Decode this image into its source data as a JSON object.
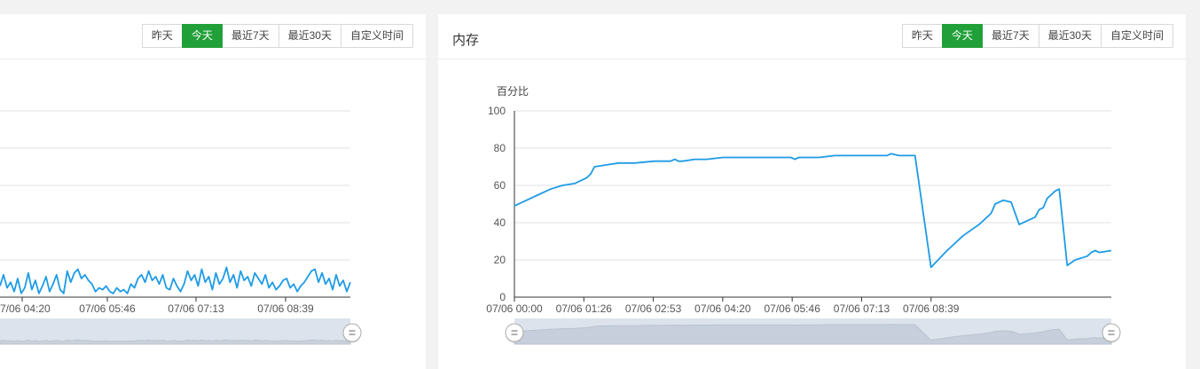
{
  "panels": [
    {
      "title": "",
      "buttons": [
        "昨天",
        "今天",
        "最近7天",
        "最近30天",
        "自定义时间"
      ],
      "active_button": "今天"
    },
    {
      "title": "内存",
      "buttons": [
        "昨天",
        "今天",
        "最近7天",
        "最近30天",
        "自定义时间"
      ],
      "active_button": "今天"
    }
  ],
  "chart_data": [
    {
      "type": "line",
      "title": "",
      "xlabel": "",
      "ylabel": "",
      "x_tick_labels": [
        "07/06 04:20",
        "07/06 05:46",
        "07/06 07:13",
        "07/06 08:39"
      ],
      "ylim": [
        0,
        100
      ],
      "grid": true,
      "range_slider": true,
      "line_color": "#1e9be6",
      "series": [
        {
          "values": [
            6,
            12,
            5,
            8,
            3,
            10,
            2,
            5,
            13,
            4,
            9,
            2,
            6,
            11,
            3,
            7,
            12,
            4,
            2,
            14,
            8,
            13,
            15,
            10,
            12,
            9,
            7,
            3,
            5,
            4,
            6,
            3,
            2,
            5,
            3,
            4,
            2,
            7,
            5,
            10,
            12,
            8,
            14,
            9,
            11,
            7,
            12,
            5,
            4,
            10,
            6,
            3,
            7,
            14,
            9,
            12,
            6,
            15,
            8,
            11,
            4,
            13,
            7,
            10,
            16,
            8,
            12,
            5,
            14,
            9,
            11,
            6,
            13,
            10,
            7,
            12,
            5,
            8,
            4,
            6,
            9,
            10,
            5,
            7,
            3,
            6,
            8,
            11,
            14,
            15,
            8,
            13,
            7,
            10,
            4,
            12,
            6,
            9,
            3,
            8
          ]
        }
      ]
    },
    {
      "type": "line",
      "title": "",
      "xlabel": "",
      "ylabel": "百分比",
      "x_tick_labels": [
        "07/06 00:00",
        "07/06 01:26",
        "07/06 02:53",
        "07/06 04:20",
        "07/06 05:46",
        "07/06 07:13",
        "07/06 08:39"
      ],
      "y_ticks": [
        0,
        20,
        40,
        60,
        80,
        100
      ],
      "ylim": [
        0,
        100
      ],
      "grid": true,
      "range_slider": true,
      "line_color": "#1e9be6",
      "series": [
        {
          "x_minutes": [
            0,
            15,
            30,
            45,
            60,
            75,
            90,
            95,
            100,
            115,
            130,
            150,
            175,
            195,
            200,
            205,
            210,
            225,
            240,
            260,
            280,
            300,
            320,
            345,
            350,
            355,
            360,
            380,
            400,
            420,
            450,
            460,
            465,
            470,
            480,
            500,
            520,
            540,
            560,
            580,
            590,
            595,
            600,
            610,
            620,
            630,
            640,
            650,
            655,
            660,
            665,
            670,
            675,
            680,
            690,
            700,
            715,
            720,
            725,
            730,
            745
          ],
          "values": [
            49,
            52,
            55,
            58,
            60,
            61,
            64,
            66,
            70,
            71,
            72,
            72,
            73,
            73,
            74,
            73,
            73,
            74,
            74,
            75,
            75,
            75,
            75,
            75,
            74,
            75,
            75,
            75,
            76,
            76,
            76,
            76,
            76,
            77,
            76,
            76,
            16,
            25,
            33,
            39,
            43,
            45,
            50,
            52,
            51,
            39,
            41,
            43,
            47,
            48,
            53,
            55,
            57,
            58,
            17,
            20,
            22,
            24,
            25,
            24,
            25
          ]
        }
      ]
    }
  ]
}
